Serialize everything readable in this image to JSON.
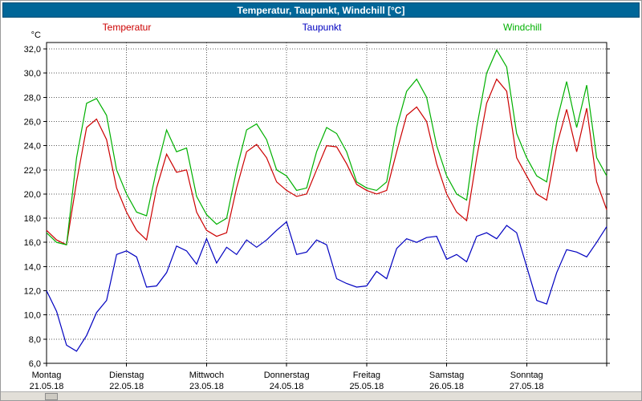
{
  "window": {
    "title": "Temperatur, Taupunkt, Windchill [°C]",
    "title_bg": "#006698",
    "title_color": "#ffffff"
  },
  "legend": [
    {
      "label": "Temperatur",
      "color": "#cc0000"
    },
    {
      "label": "Taupunkt",
      "color": "#0000c0"
    },
    {
      "label": "Windchill",
      "color": "#00b000"
    }
  ],
  "chart_data": {
    "type": "line",
    "title": "Temperatur, Taupunkt, Windchill [°C]",
    "xlabel": "",
    "ylabel": "°C",
    "ylim": [
      6,
      32
    ],
    "y_tick_step": 2,
    "grid": "dotted",
    "legend_position": "top",
    "x_unit": "hours since Monday 00:00",
    "x_range_hours": [
      0,
      168
    ],
    "x": [
      0,
      3,
      6,
      9,
      12,
      15,
      18,
      21,
      24,
      27,
      30,
      33,
      36,
      39,
      42,
      45,
      48,
      51,
      54,
      57,
      60,
      63,
      66,
      69,
      72,
      75,
      78,
      81,
      84,
      87,
      90,
      93,
      96,
      99,
      102,
      105,
      108,
      111,
      114,
      117,
      120,
      123,
      126,
      129,
      132,
      135,
      138,
      141,
      144,
      147,
      150,
      153,
      156,
      159,
      162,
      165,
      168
    ],
    "x_day_labels": [
      {
        "day": "Montag",
        "date": "21.05.18"
      },
      {
        "day": "Dienstag",
        "date": "22.05.18"
      },
      {
        "day": "Mittwoch",
        "date": "23.05.18"
      },
      {
        "day": "Donnerstag",
        "date": "24.05.18"
      },
      {
        "day": "Freitag",
        "date": "25.05.18"
      },
      {
        "day": "Samstag",
        "date": "26.05.18"
      },
      {
        "day": "Sonntag",
        "date": "27.05.18"
      }
    ],
    "series": [
      {
        "name": "Temperatur",
        "color": "#cc0000",
        "values": [
          17.0,
          16.2,
          15.8,
          21.0,
          25.5,
          26.2,
          24.5,
          20.5,
          18.5,
          17.0,
          16.2,
          20.5,
          23.3,
          21.8,
          22.0,
          18.5,
          17.0,
          16.5,
          16.8,
          20.5,
          23.5,
          24.1,
          23.0,
          21.0,
          20.3,
          19.8,
          20.0,
          22.0,
          24.0,
          23.9,
          22.5,
          20.8,
          20.3,
          20.0,
          20.3,
          23.5,
          26.5,
          27.2,
          26.0,
          22.5,
          20.0,
          18.5,
          17.8,
          23.0,
          27.5,
          29.5,
          28.5,
          23.0,
          21.5,
          20.0,
          19.5,
          24.0,
          27.0,
          23.5,
          27.1,
          21.0,
          18.7
        ]
      },
      {
        "name": "Taupunkt",
        "color": "#0000c0",
        "values": [
          12.0,
          10.3,
          7.5,
          7.0,
          8.3,
          10.2,
          11.2,
          15.0,
          15.3,
          14.8,
          12.3,
          12.4,
          13.5,
          15.7,
          15.3,
          14.2,
          16.3,
          14.3,
          15.6,
          15.0,
          16.2,
          15.6,
          16.2,
          17.0,
          17.7,
          15.0,
          15.2,
          16.2,
          15.8,
          13.0,
          12.6,
          12.3,
          12.4,
          13.6,
          13.0,
          15.5,
          16.3,
          16.0,
          16.4,
          16.5,
          14.6,
          15.0,
          14.4,
          16.5,
          16.8,
          16.3,
          17.4,
          16.8,
          14.0,
          11.2,
          10.9,
          13.5,
          15.4,
          15.2,
          14.8,
          16.0,
          17.3
        ]
      },
      {
        "name": "Windchill",
        "color": "#00b000",
        "values": [
          16.8,
          16.0,
          15.8,
          23.0,
          27.5,
          27.9,
          26.5,
          22.0,
          20.0,
          18.5,
          18.2,
          22.0,
          25.3,
          23.5,
          23.8,
          19.8,
          18.3,
          17.5,
          18.0,
          22.0,
          25.3,
          25.8,
          24.5,
          22.0,
          21.5,
          20.3,
          20.5,
          23.5,
          25.5,
          25.0,
          23.5,
          21.0,
          20.5,
          20.3,
          21.0,
          25.5,
          28.5,
          29.5,
          28.0,
          24.0,
          21.5,
          20.0,
          19.5,
          25.5,
          30.0,
          31.9,
          30.5,
          25.0,
          23.0,
          21.5,
          21.0,
          26.0,
          29.3,
          25.5,
          29.0,
          23.0,
          21.5
        ]
      }
    ]
  }
}
